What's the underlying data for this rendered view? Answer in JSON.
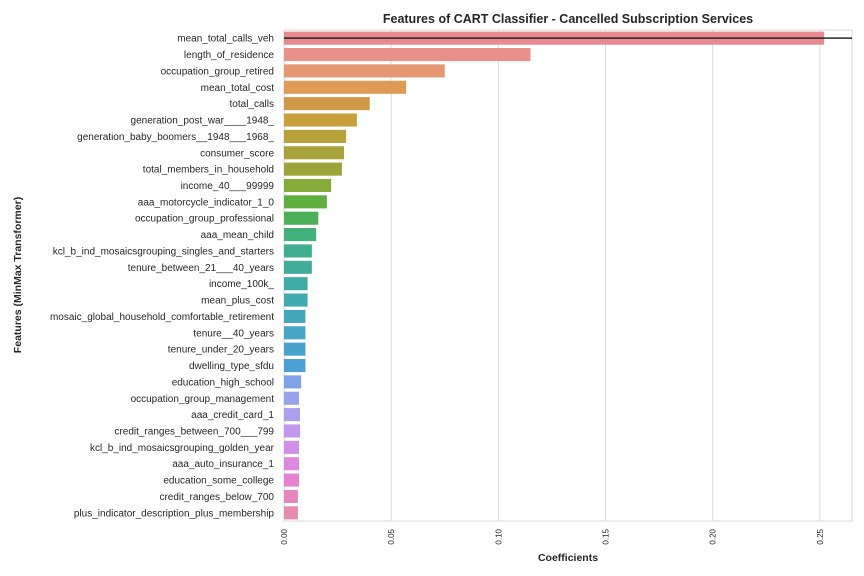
{
  "chart_data": {
    "type": "bar",
    "orientation": "horizontal",
    "title": "Features of CART Classifier - Cancelled Subscription Services",
    "xlabel": "Coefficients",
    "ylabel": "Features (MinMax Transformer)",
    "xlim": [
      0,
      0.265
    ],
    "xticks": [
      "0.00",
      "0.05",
      "0.10",
      "0.15",
      "0.20",
      "0.25"
    ],
    "grid": true,
    "categories": [
      "mean_total_calls_veh",
      "length_of_residence",
      "occupation_group_retired",
      "mean_total_cost",
      "total_calls",
      "generation_post_war____1948_",
      "generation_baby_boomers__1948___1968_",
      "consumer_score",
      "total_members_in_household",
      "income_40___99999",
      "aaa_motorcycle_indicator_1_0",
      "occupation_group_professional",
      "aaa_mean_child",
      "kcl_b_ind_mosaicsgrouping_singles_and_starters",
      "tenure_between_21___40_years",
      "income_100k_",
      "mean_plus_cost",
      "mosaic_global_household_comfortable_retirement",
      "tenure__40_years",
      "tenure_under_20_years",
      "dwelling_type_sfdu",
      "education_high_school",
      "occupation_group_management",
      "aaa_credit_card_1",
      "credit_ranges_between_700___799",
      "kcl_b_ind_mosaicsgrouping_golden_year",
      "aaa_auto_insurance_1",
      "education_some_college",
      "credit_ranges_below_700",
      "plus_indicator_description_plus_membership"
    ],
    "values": [
      0.252,
      0.115,
      0.075,
      0.057,
      0.04,
      0.034,
      0.029,
      0.028,
      0.027,
      0.022,
      0.02,
      0.016,
      0.015,
      0.013,
      0.013,
      0.011,
      0.011,
      0.01,
      0.01,
      0.01,
      0.01,
      0.008,
      0.007,
      0.0075,
      0.0075,
      0.007,
      0.007,
      0.007,
      0.0065,
      0.0065
    ],
    "colors": [
      "#e8898f",
      "#e8908a",
      "#e59773",
      "#df9a55",
      "#cf9a48",
      "#c89f3d",
      "#b6a13a",
      "#a8a23a",
      "#9aa43a",
      "#86ab3a",
      "#5eaf3f",
      "#4cb058",
      "#42b07a",
      "#3fae8e",
      "#3fad9a",
      "#40aca6",
      "#42aab1",
      "#44a8ba",
      "#46a6c3",
      "#48a3cc",
      "#4da0d6",
      "#7fa3e6",
      "#98a2eb",
      "#ac9ff0",
      "#c198ee",
      "#d08fea",
      "#dc88e1",
      "#e483d2",
      "#e786c0",
      "#e78aae"
    ],
    "reference_line": 0.252
  }
}
